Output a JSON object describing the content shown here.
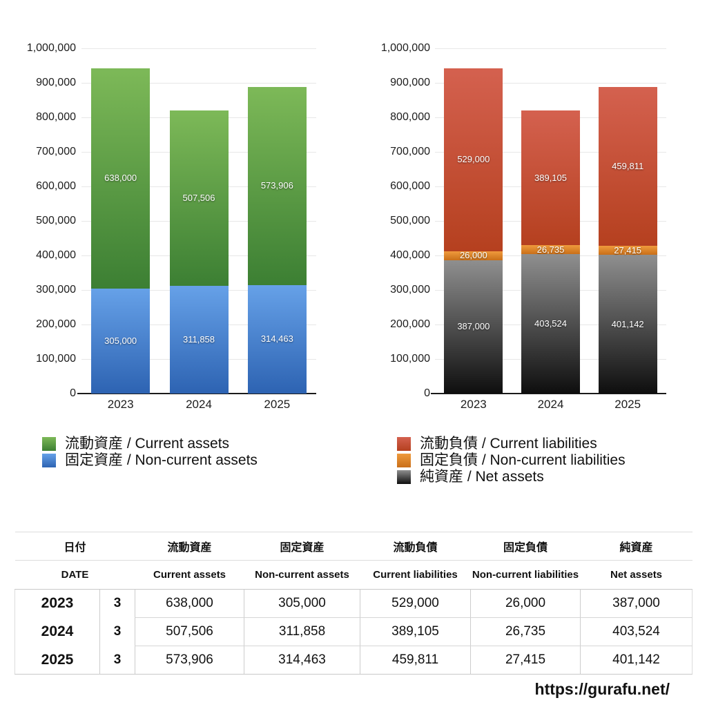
{
  "page": {
    "background": "#ffffff"
  },
  "footer": {
    "url": "https://gurafu.net/"
  },
  "chart_data": [
    {
      "type": "bar",
      "stacked": true,
      "title": "",
      "xlabel": "",
      "ylabel": "",
      "categories": [
        "2023",
        "2024",
        "2025"
      ],
      "series": [
        {
          "name": "流動資産 / Current assets",
          "values": [
            638000,
            507506,
            573906
          ],
          "labels": [
            "638,000",
            "507,506",
            "573,906"
          ],
          "color_top": "#7db958",
          "color_bottom": "#3c7f33"
        },
        {
          "name": "固定資産 / Non-current assets",
          "values": [
            305000,
            311858,
            314463
          ],
          "labels": [
            "305,000",
            "311,858",
            "314,463"
          ],
          "color_top": "#66a1e8",
          "color_bottom": "#2d63b2"
        }
      ],
      "ylim": [
        0,
        1000000
      ],
      "ytick_step": 100000,
      "ytick_labels": [
        "0",
        "100,000",
        "200,000",
        "300,000",
        "400,000",
        "500,000",
        "600,000",
        "700,000",
        "800,000",
        "900,000",
        "1,000,000"
      ],
      "grid": true,
      "legend_position": "bottom-left"
    },
    {
      "type": "bar",
      "stacked": true,
      "title": "",
      "xlabel": "",
      "ylabel": "",
      "categories": [
        "2023",
        "2024",
        "2025"
      ],
      "series": [
        {
          "name": "流動負債 / Current liabilities",
          "values": [
            529000,
            389105,
            459811
          ],
          "labels": [
            "529,000",
            "389,105",
            "459,811"
          ],
          "color_top": "#d4614f",
          "color_bottom": "#b5401f"
        },
        {
          "name": "固定負債 / Non-current liabilities",
          "values": [
            26000,
            26735,
            27415
          ],
          "labels": [
            "26,000",
            "26,735",
            "27,415"
          ],
          "color_top": "#ef9a3c",
          "color_bottom": "#c96f19"
        },
        {
          "name": "純資産 / Net assets",
          "values": [
            387000,
            403524,
            401142
          ],
          "labels": [
            "387,000",
            "403,524",
            "401,142"
          ],
          "color_top": "#8f8f8f",
          "color_bottom": "#0e0e0e"
        }
      ],
      "ylim": [
        0,
        1000000
      ],
      "ytick_step": 100000,
      "ytick_labels": [
        "0",
        "100,000",
        "200,000",
        "300,000",
        "400,000",
        "500,000",
        "600,000",
        "700,000",
        "800,000",
        "900,000",
        "1,000,000"
      ],
      "grid": true,
      "legend_position": "bottom-left"
    }
  ],
  "table": {
    "headers_jp": [
      "日付",
      "流動資産",
      "固定資産",
      "流動負債",
      "固定負債",
      "純資産"
    ],
    "headers_en": [
      "DATE",
      "Current assets",
      "Non-current assets",
      "Current liabilities",
      "Non-current liabilities",
      "Net assets"
    ],
    "rows": [
      {
        "year": "2023",
        "month": "3",
        "values": [
          "638,000",
          "305,000",
          "529,000",
          "26,000",
          "387,000"
        ]
      },
      {
        "year": "2024",
        "month": "3",
        "values": [
          "507,506",
          "311,858",
          "389,105",
          "26,735",
          "403,524"
        ]
      },
      {
        "year": "2025",
        "month": "3",
        "values": [
          "573,906",
          "314,463",
          "459,811",
          "27,415",
          "401,142"
        ]
      }
    ]
  }
}
